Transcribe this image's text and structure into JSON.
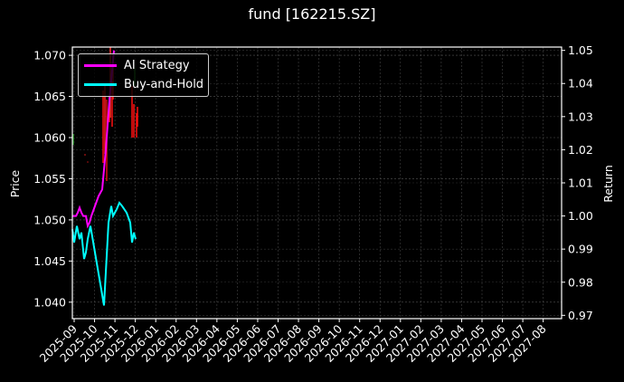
{
  "chart_data": {
    "type": "line",
    "title": "fund [162215.SZ]",
    "xlabel": "",
    "ylabel_left": "Price",
    "ylabel_right": "Return",
    "ylim_left": [
      1.038,
      1.071
    ],
    "ylim_right": [
      0.969,
      1.051
    ],
    "yticks_left": [
      "1.040",
      "1.045",
      "1.050",
      "1.055",
      "1.060",
      "1.065",
      "1.070"
    ],
    "yticks_right": [
      "0.97",
      "0.98",
      "0.99",
      "1.00",
      "1.01",
      "1.02",
      "1.03",
      "1.04",
      "1.05"
    ],
    "xticks": [
      "2025-09",
      "2025-10",
      "2025-11",
      "2025-12",
      "2026-01",
      "2026-02",
      "2026-03",
      "2026-04",
      "2026-05",
      "2026-06",
      "2026-07",
      "2026-08",
      "2026-09",
      "2026-10",
      "2026-11",
      "2026-12",
      "2027-01",
      "2027-02",
      "2027-03",
      "2027-04",
      "2027-05",
      "2027-06",
      "2027-07",
      "2027-08"
    ],
    "grid": true,
    "legend_position": "upper left",
    "series": [
      {
        "name": "AI Strategy",
        "color": "#ff00ff",
        "axis": "right",
        "values": [
          1.0,
          1.0,
          1.001,
          1.0025,
          1.001,
          1.0,
          1.0,
          0.997,
          0.998,
          1.0,
          1.003,
          1.006,
          1.008,
          1.02,
          1.035,
          1.05
        ]
      },
      {
        "name": "Buy-and-Hold",
        "color": "#00ffff",
        "axis": "right",
        "values": [
          0.996,
          0.992,
          0.997,
          0.993,
          0.995,
          0.987,
          0.989,
          0.993,
          0.997,
          0.973,
          0.998,
          1.003,
          1.0,
          1.002,
          1.004,
          1.003,
          1.001,
          0.998,
          0.992,
          0.995,
          0.993
        ]
      }
    ],
    "annotations": "red/green vertical candle wicks near 2025-10 to 2025-11 on Price axis (range ~1.057-1.071)"
  }
}
